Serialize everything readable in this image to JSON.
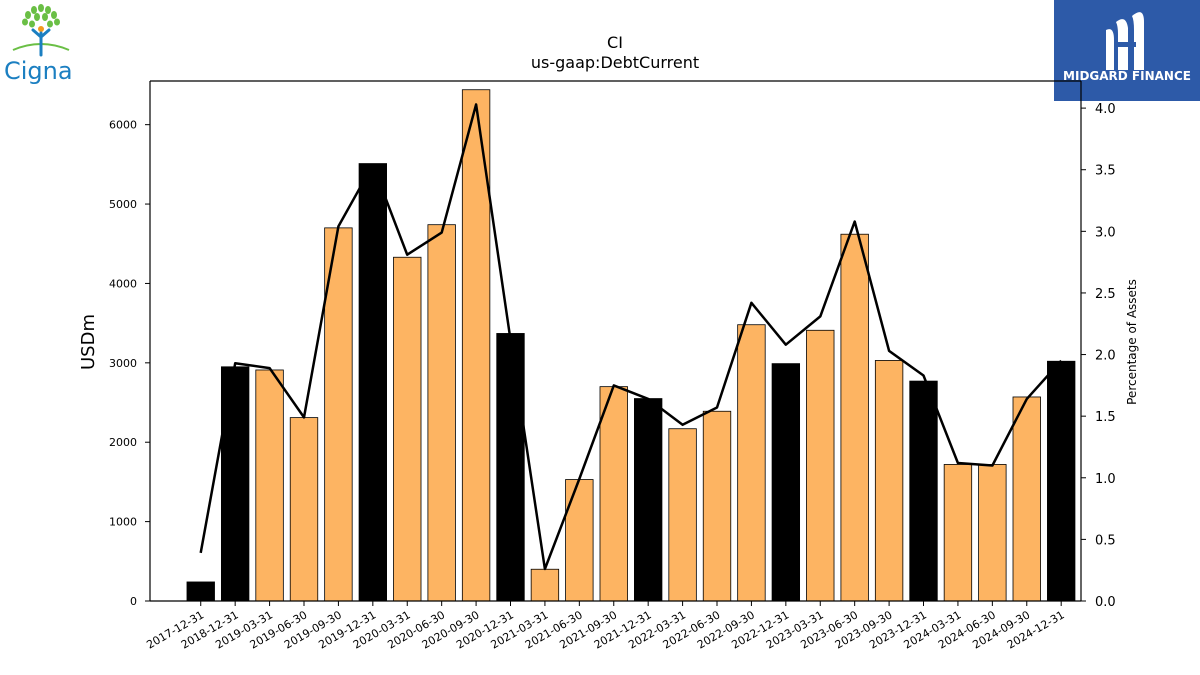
{
  "branding": {
    "company_logo_text": "Cigna",
    "partner_logo_text": "MIDGARD FINANCE",
    "colors": {
      "cigna_blue": "#1b7fc1",
      "cigna_green": "#6abf45",
      "midgard_blue": "#2d5aa8"
    }
  },
  "chart_data": {
    "type": "bar",
    "title": "CI",
    "subtitle": "us-gaap:DebtCurrent",
    "ylabel": "USDm",
    "y2label": "Percentage of Assets",
    "ylim": [
      0,
      6550
    ],
    "y2lim": [
      0,
      4.22
    ],
    "yticks": [
      0,
      1000,
      2000,
      3000,
      4000,
      5000,
      6000
    ],
    "y2ticks": [
      "0.0",
      "0.5",
      "1.0",
      "1.5",
      "2.0",
      "2.5",
      "3.0",
      "3.5",
      "4.0"
    ],
    "categories": [
      "2017-12-31",
      "2018-12-31",
      "2019-03-31",
      "2019-06-30",
      "2019-09-30",
      "2019-12-31",
      "2020-03-31",
      "2020-06-30",
      "2020-09-30",
      "2020-12-31",
      "2021-03-31",
      "2021-06-30",
      "2021-09-30",
      "2021-12-31",
      "2022-03-31",
      "2022-06-30",
      "2022-09-30",
      "2022-12-31",
      "2023-03-31",
      "2023-06-30",
      "2023-09-30",
      "2023-12-31",
      "2024-03-31",
      "2024-06-30",
      "2024-09-30",
      "2024-12-31"
    ],
    "values": [
      240,
      2950,
      2910,
      2310,
      4700,
      5510,
      4330,
      4740,
      6440,
      3370,
      400,
      1530,
      2700,
      2550,
      2170,
      2390,
      3480,
      2990,
      3410,
      4620,
      3030,
      2770,
      1720,
      1720,
      2570,
      3020
    ],
    "bar_kind": [
      "year-end",
      "year-end",
      "quarter",
      "quarter",
      "quarter",
      "year-end",
      "quarter",
      "quarter",
      "quarter",
      "year-end",
      "quarter",
      "quarter",
      "quarter",
      "year-end",
      "quarter",
      "quarter",
      "quarter",
      "year-end",
      "quarter",
      "quarter",
      "quarter",
      "year-end",
      "quarter",
      "quarter",
      "quarter",
      "year-end"
    ],
    "line_series": {
      "values": [
        0.39,
        1.93,
        1.89,
        1.49,
        3.04,
        3.54,
        2.81,
        2.99,
        4.03,
        2.12,
        0.26,
        0.99,
        1.75,
        1.64,
        1.43,
        1.57,
        2.42,
        2.08,
        2.31,
        3.08,
        2.03,
        1.83,
        1.12,
        1.1,
        1.64,
        1.95
      ],
      "axis": "secondary"
    },
    "colors": {
      "quarter_bar": "#fdb462",
      "year_end_bar": "#000000",
      "line": "#000000"
    },
    "grid": false,
    "legend": "none"
  }
}
